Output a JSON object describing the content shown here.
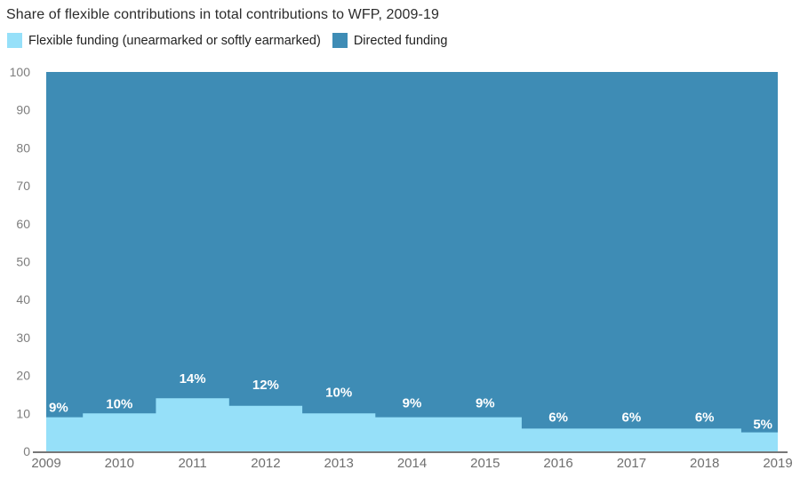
{
  "title": "Share of flexible contributions in total contributions to WFP, 2009-19",
  "legend": {
    "items": [
      {
        "label": "Flexible funding (unearmarked or softly earmarked)",
        "color": "#96E0F9"
      },
      {
        "label": "Directed funding",
        "color": "#3E8CB5"
      }
    ]
  },
  "colors": {
    "flexible": "#96E0F9",
    "directed": "#3E8CB5",
    "axis_line": "#777777",
    "y_label": "#7d7d7d",
    "x_label": "#6f6f6f",
    "value_label": "#ffffff"
  },
  "chart_data": {
    "type": "area",
    "interpolation": "step",
    "stacked": true,
    "title": "Share of flexible contributions in total contributions to WFP, 2009-19",
    "categories": [
      "2009",
      "2010",
      "2011",
      "2012",
      "2013",
      "2014",
      "2015",
      "2016",
      "2017",
      "2018",
      "2019"
    ],
    "series": [
      {
        "name": "Flexible funding (unearmarked or softly earmarked)",
        "color": "#96E0F9",
        "values": [
          9,
          10,
          14,
          12,
          10,
          9,
          9,
          6,
          6,
          6,
          5
        ]
      },
      {
        "name": "Directed funding",
        "color": "#3E8CB5",
        "values": [
          91,
          90,
          86,
          88,
          90,
          91,
          91,
          94,
          94,
          94,
          95
        ]
      }
    ],
    "value_labels": [
      "9%",
      "10%",
      "14%",
      "12%",
      "10%",
      "9%",
      "9%",
      "6%",
      "6%",
      "6%",
      "5%"
    ],
    "xlabel": "",
    "ylabel": "",
    "ylim": [
      0,
      100
    ],
    "yticks": [
      0,
      10,
      20,
      30,
      40,
      50,
      60,
      70,
      80,
      90,
      100
    ],
    "grid": false,
    "legend_position": "top"
  }
}
